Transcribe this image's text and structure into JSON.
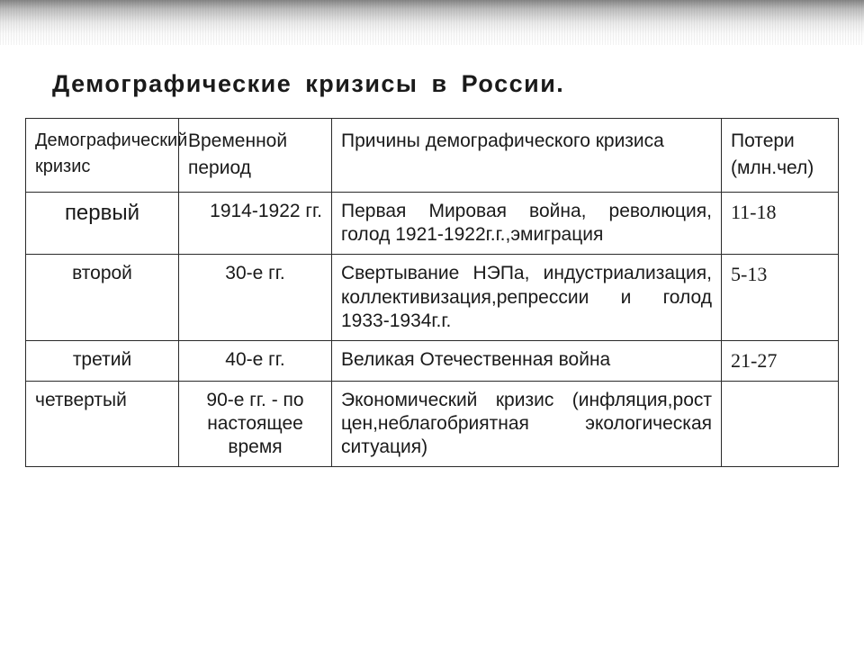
{
  "title": "Демографические кризисы в России.",
  "columns": {
    "c1": "Демографический кризис",
    "c2a": "Временной",
    "c2b": "период",
    "c3": "Причины демографического кризиса",
    "c4a": "Потери",
    "c4b": "(млн.чел)"
  },
  "rows": [
    {
      "name": "первый",
      "period": "1914-1922 гг.",
      "cause": "Первая Мировая война, революция, голод 1921-1922г.г.,эмиграция",
      "loss": "11-18"
    },
    {
      "name": "второй",
      "period": "30-е  гг.",
      "cause": "Свертывание НЭПа, индустриализация, коллективизация,репрессии и голод 1933-1934г.г.",
      "loss": "5-13"
    },
    {
      "name": "третий",
      "period": "40-е  гг.",
      "cause": "Великая Отечественная война",
      "loss": "21-27"
    },
    {
      "name": "четвертый",
      "period": "90-е  гг. - по настоящее время",
      "cause": "Экономический кризис (инфляция,рост цен,неблагобриятная экологическая ситуация)",
      "loss": ""
    }
  ],
  "style": {
    "border_color": "#2a2a2a",
    "text_color": "#1a1a1a",
    "body_fontsize": 21,
    "title_fontsize": 27,
    "serif_fontsize": 22,
    "background": "#ffffff"
  }
}
